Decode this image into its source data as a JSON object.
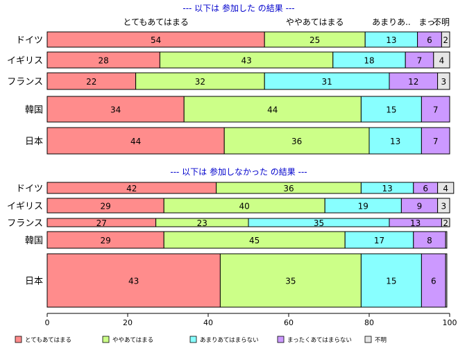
{
  "colors": {
    "section_title": "#0000cc",
    "axis": "#000000",
    "border": "#000000"
  },
  "chart_data": {
    "type": "bar",
    "orientation": "horizontal",
    "stacked": true,
    "xlim": [
      0,
      100
    ],
    "x_ticks": [
      "0",
      "20",
      "40",
      "60",
      "80",
      "100"
    ],
    "grid": false,
    "legend": {
      "position": "bottom",
      "entries": [
        {
          "label": "とてもあてはまる",
          "color": "#ff8c8c"
        },
        {
          "label": "ややあてはまる",
          "color": "#ccff88"
        },
        {
          "label": "あまりあてはまらない",
          "color": "#88ffff"
        },
        {
          "label": "まったくあてはまらない",
          "color": "#cc99ff"
        },
        {
          "label": "不明",
          "color": "#e6e6e6"
        }
      ]
    },
    "panels": [
      {
        "title": "--- 以下は 参加した の結果 ---",
        "header_labels": [
          "とてもあてはまる",
          "ややあてはまる",
          "あまりあ..",
          "まっ..",
          "不明"
        ],
        "categories": [
          "ドイツ",
          "イギリス",
          "フランス",
          "韓国",
          "日本"
        ],
        "values": [
          [
            54,
            25,
            13,
            6,
            2
          ],
          [
            28,
            43,
            18,
            7,
            4
          ],
          [
            22,
            32,
            31,
            12,
            3
          ],
          [
            34,
            44,
            15,
            7,
            0
          ],
          [
            44,
            36,
            13,
            7,
            0
          ]
        ]
      },
      {
        "title": "--- 以下は 参加しなかった の結果 ---",
        "categories": [
          "ドイツ",
          "イギリス",
          "フランス",
          "韓国",
          "日本"
        ],
        "values": [
          [
            42,
            36,
            13,
            6,
            4
          ],
          [
            29,
            40,
            19,
            9,
            3
          ],
          [
            27,
            23,
            35,
            13,
            2
          ],
          [
            29,
            45,
            17,
            8,
            0
          ],
          [
            43,
            35,
            15,
            6,
            0
          ]
        ]
      }
    ]
  }
}
